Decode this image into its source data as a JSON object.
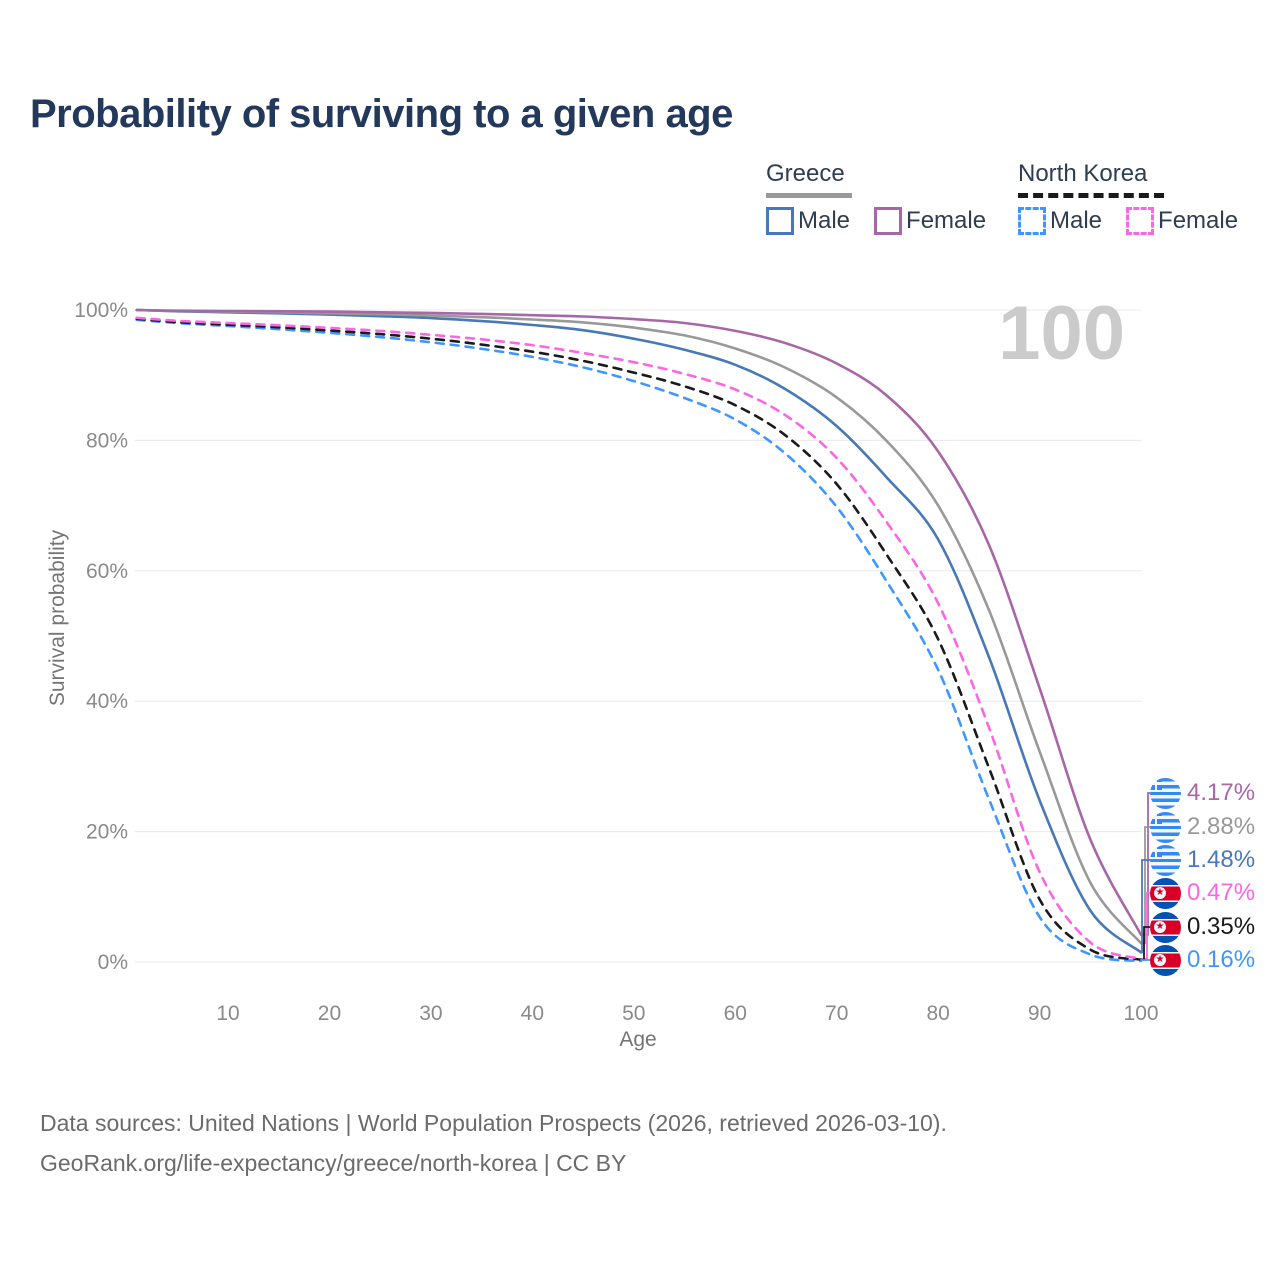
{
  "page": {
    "title": "Probability of surviving to a given age"
  },
  "legend": {
    "groups": [
      {
        "label": "Greece",
        "line_style": "solid",
        "line_color": "#999999",
        "items": [
          {
            "label": "Male",
            "color": "#4878b8",
            "style": "solid"
          },
          {
            "label": "Female",
            "color": "#a767a7",
            "style": "solid"
          }
        ]
      },
      {
        "label": "North Korea",
        "line_style": "dashed",
        "line_color": "#1a1a1a",
        "items": [
          {
            "label": "Male",
            "color": "#3e97ff",
            "style": "dashed"
          },
          {
            "label": "Female",
            "color": "#fa66e4",
            "style": "dashed"
          }
        ]
      }
    ]
  },
  "chart_data": {
    "type": "line",
    "title": "Probability of surviving to a given age",
    "xlabel": "Age",
    "ylabel": "Survival probability",
    "xlim": [
      0,
      100
    ],
    "ylim": [
      0,
      100
    ],
    "grid": "horizontal",
    "legend_position": "top-right",
    "age_indicator": "100",
    "x_ticks": [
      10,
      20,
      30,
      40,
      50,
      60,
      70,
      80,
      90,
      100
    ],
    "y_ticks": [
      {
        "v": 0,
        "label": "0%"
      },
      {
        "v": 20,
        "label": "20%"
      },
      {
        "v": 40,
        "label": "40%"
      },
      {
        "v": 60,
        "label": "60%"
      },
      {
        "v": 80,
        "label": "80%"
      },
      {
        "v": 100,
        "label": "100%"
      }
    ],
    "x": [
      1,
      5,
      10,
      15,
      20,
      25,
      30,
      35,
      40,
      45,
      50,
      55,
      60,
      65,
      70,
      75,
      80,
      85,
      90,
      95,
      100
    ],
    "series": [
      {
        "name": "Greece Female",
        "country": "greece",
        "sex": "female",
        "style": "solid",
        "color": "#a767a7",
        "end_label": "4.17%",
        "values": [
          100,
          99.9,
          99.85,
          99.8,
          99.75,
          99.65,
          99.55,
          99.4,
          99.2,
          99.0,
          98.6,
          98.0,
          96.8,
          94.9,
          91.8,
          86.8,
          78.3,
          64.0,
          42.0,
          18.8,
          4.17
        ]
      },
      {
        "name": "Greece",
        "country": "greece",
        "sex": "all",
        "style": "solid",
        "color": "#999999",
        "end_label": "2.88%",
        "values": [
          100,
          99.85,
          99.75,
          99.65,
          99.5,
          99.35,
          99.15,
          98.9,
          98.55,
          98.1,
          97.3,
          96.1,
          94.1,
          91.1,
          86.6,
          79.8,
          70.0,
          54.0,
          32.3,
          12.2,
          2.88
        ]
      },
      {
        "name": "Greece Male",
        "country": "greece",
        "sex": "male",
        "style": "solid",
        "color": "#4878b8",
        "end_label": "1.48%",
        "values": [
          100,
          99.8,
          99.65,
          99.5,
          99.3,
          99.05,
          98.75,
          98.3,
          97.7,
          96.9,
          95.6,
          93.9,
          91.6,
          87.8,
          82.2,
          74.2,
          64.8,
          46.8,
          24.8,
          7.9,
          1.48
        ]
      },
      {
        "name": "North Korea Female",
        "country": "north-korea",
        "sex": "female",
        "style": "dashed",
        "color": "#fa66e4",
        "end_label": "0.47%",
        "values": [
          98.8,
          98.35,
          98.0,
          97.65,
          97.25,
          96.8,
          96.2,
          95.5,
          94.6,
          93.4,
          92.0,
          90.2,
          87.8,
          83.8,
          77.3,
          67.3,
          55.0,
          36.0,
          13.8,
          3.0,
          0.47
        ]
      },
      {
        "name": "North Korea",
        "country": "north-korea",
        "sex": "all",
        "style": "dashed",
        "color": "#1a1a1a",
        "end_label": "0.35%",
        "values": [
          98.65,
          98.15,
          97.75,
          97.35,
          96.85,
          96.3,
          95.6,
          94.7,
          93.6,
          92.2,
          90.4,
          88.3,
          85.4,
          80.7,
          73.3,
          62.3,
          49.5,
          29.8,
          9.6,
          1.9,
          0.35
        ]
      },
      {
        "name": "North Korea Male",
        "country": "north-korea",
        "sex": "male",
        "style": "dashed",
        "color": "#3e97ff",
        "end_label": "0.16%",
        "values": [
          98.5,
          98.0,
          97.55,
          97.05,
          96.5,
          95.85,
          95.05,
          94.05,
          92.8,
          91.2,
          89.1,
          86.5,
          83.2,
          77.9,
          69.8,
          58.2,
          44.8,
          25.0,
          6.9,
          1.15,
          0.16
        ]
      }
    ]
  },
  "footer": {
    "line1": "Data sources: United Nations | World Population Prospects (2026, retrieved 2026-03-10).",
    "line2": "GeoRank.org/life-expectancy/greece/north-korea | CC BY"
  }
}
